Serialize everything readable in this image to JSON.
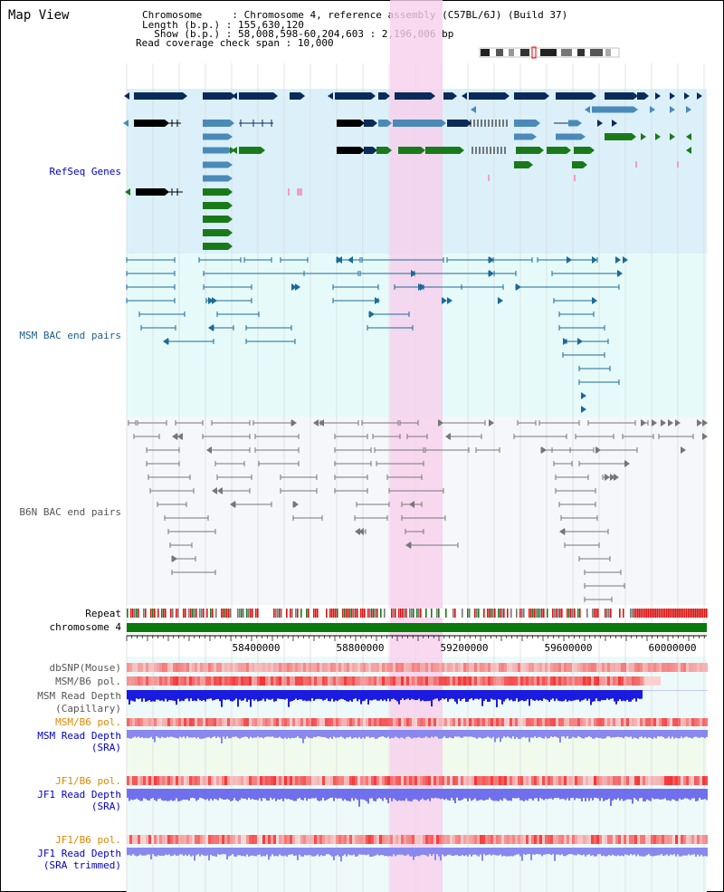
{
  "header": {
    "title": "Map View",
    "lines": [
      {
        "key": "Chromosome     ",
        "value": "Chromosome 4, reference assembly (C57BL/6J) (Build 37)"
      },
      {
        "key": "Length (b.p.) ",
        "value": "155,630,120"
      },
      {
        "key": "  Show (b.p.) ",
        "value": "58,008,598-60,204,603 : 2,196,006 bp"
      },
      {
        "key": "Read coverage check span ",
        "value": "10,000"
      }
    ]
  },
  "tracks": {
    "refseq": {
      "label": "RefSeq Genes",
      "color": "#0000cc",
      "band_color": "#dcf0fa"
    },
    "msm_bac": {
      "label": "MSM BAC end pairs",
      "color": "#1a5e8c",
      "band_color": "#e6fafa"
    },
    "b6n_bac": {
      "label": "B6N BAC end pairs",
      "color": "#666666",
      "band_color": "#f5f7fa"
    },
    "repeat": {
      "label": "Repeat"
    },
    "chromosome": {
      "label": "chromosome 4"
    },
    "axis_ticks": [
      "58400000",
      "58800000",
      "59200000",
      "59600000",
      "60000000"
    ],
    "dbsnp": {
      "label": "dbSNP(Mouse)"
    },
    "msm_b6_pol_1": {
      "label": "MSM/B6 pol."
    },
    "msm_read_depth_cap": {
      "label1": "MSM Read Depth",
      "label2": "(Capillary)"
    },
    "msm_b6_pol_2": {
      "label": "MSM/B6 pol."
    },
    "msm_read_depth_sra": {
      "label1": "MSM Read Depth",
      "label2": "(SRA)"
    },
    "jf1_b6_pol_1": {
      "label": "JF1/B6 pol."
    },
    "jf1_read_depth_sra": {
      "label1": "JF1 Read Depth",
      "label2": "(SRA)"
    },
    "jf1_b6_pol_2": {
      "label": "JF1/B6 pol."
    },
    "jf1_read_depth_trim": {
      "label1": "JF1 Read Depth",
      "label2": "(SRA trimmed)"
    }
  },
  "colors": {
    "orange_label": "#dd8800",
    "blue_label": "#0000cc",
    "highlight": "#f8d0ec",
    "gene_dark": "#0a2a5a",
    "gene_mid": "#4a8ab8",
    "gene_green": "#1a7a1a"
  }
}
